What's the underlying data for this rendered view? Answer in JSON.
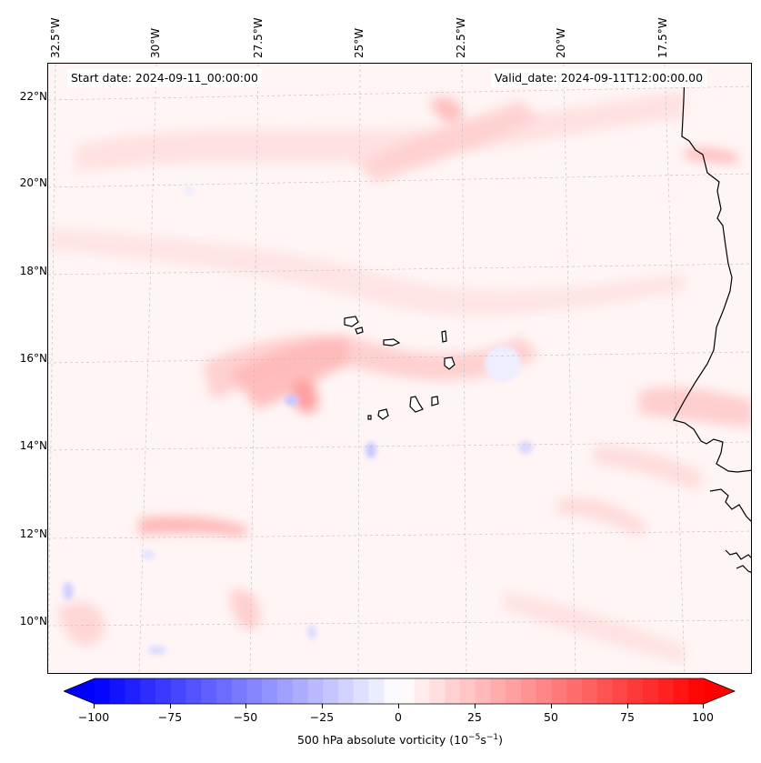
{
  "map": {
    "start_date": "Start date: 2024-09-11_00:00:00",
    "valid_date": "Valid_date: 2024-09-11T12:00:00.00",
    "longitude_labels": [
      "32.5°W",
      "30°W",
      "27.5°W",
      "25°W",
      "22.5°W",
      "20°W",
      "17.5°W"
    ],
    "latitude_labels": [
      "22°N",
      "20°N",
      "18°N",
      "16°N",
      "14°N",
      "12°N",
      "10°N"
    ],
    "field": "500 hPa absolute vorticity",
    "units_prefix": "500 hPa absolute vorticity (10",
    "colors": {
      "negative": "#0000ff",
      "neutral": "#ffffff",
      "positive": "#ff0000",
      "coast": "#000000"
    }
  },
  "colorbar": {
    "ticks": [
      "−100",
      "−75",
      "−50",
      "−25",
      "0",
      "25",
      "50",
      "75",
      "100"
    ],
    "label_text": "500 hPa absolute vorticity (10",
    "label_exp1": "−5",
    "label_mid": "s",
    "label_exp2": "−1",
    "label_end": ")"
  }
}
